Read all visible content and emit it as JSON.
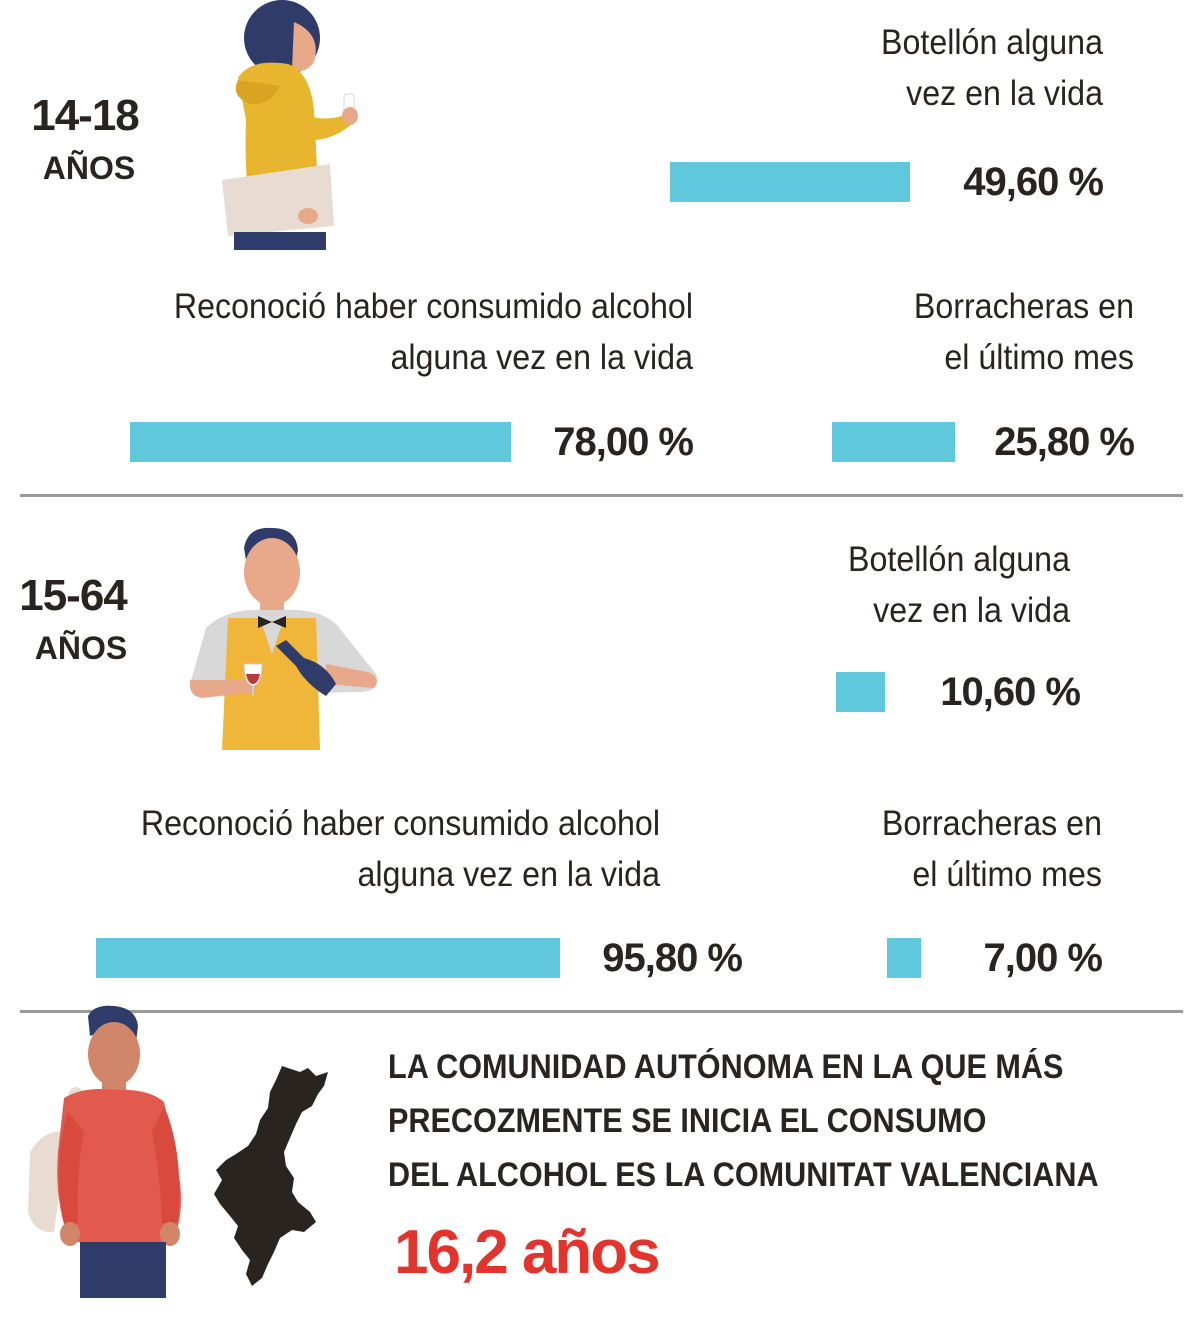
{
  "colors": {
    "bar": "#5fc8dc",
    "text": "#2a2420",
    "accent": "#e2342c",
    "divider": "#9a9a9a"
  },
  "chart_data": [
    {
      "type": "bar",
      "group_age": "14-18",
      "group_unit": "AÑOS",
      "categories": [
        "Botellón alguna vez en la vida",
        "Reconoció haber consumido alcohol alguna vez en la vida",
        "Borracheras en el último mes"
      ],
      "values": [
        49.6,
        78.0,
        25.8
      ],
      "unit": "%"
    },
    {
      "type": "bar",
      "group_age": "15-64",
      "group_unit": "AÑOS",
      "categories": [
        "Botellón alguna vez en la vida",
        "Reconoció haber consumido alcohol alguna vez en la vida",
        "Borracheras en el último mes"
      ],
      "values": [
        10.6,
        95.8,
        7.0
      ],
      "unit": "%"
    }
  ],
  "section1": {
    "age": "14-18",
    "unit": "AÑOS",
    "botellon": {
      "line1": "Botellón alguna",
      "line2": "vez en la vida",
      "value": "49,60 %",
      "pct": 49.6
    },
    "alcohol": {
      "line1": "Reconoció haber consumido alcohol",
      "line2": "alguna vez en la vida",
      "value": "78,00 %",
      "pct": 78.0
    },
    "borracheras": {
      "line1": "Borracheras en",
      "line2": "el último mes",
      "value": "25,80 %",
      "pct": 25.8
    }
  },
  "section2": {
    "age": "15-64",
    "unit": "AÑOS",
    "botellon": {
      "line1": "Botellón alguna",
      "line2": "vez en la vida",
      "value": "10,60 %",
      "pct": 10.6
    },
    "alcohol": {
      "line1": "Reconoció haber consumido alcohol",
      "line2": "alguna vez en la vida",
      "value": "95,80 %",
      "pct": 95.8
    },
    "borracheras": {
      "line1": "Borracheras en",
      "line2": "el último mes",
      "value": "7,00 %",
      "pct": 7.0
    }
  },
  "footer": {
    "line1": "LA COMUNIDAD AUTÓNOMA EN LA QUE MÁS",
    "line2": "PRECOZMENTE SE INICIA EL CONSUMO",
    "line3": "DEL ALCOHOL ES LA COMUNITAT VALENCIANA",
    "highlight": "16,2 años"
  },
  "icons": {
    "teen": "teen-girl-icon",
    "adult": "waiter-with-wine-icon",
    "young": "young-man-icon",
    "map": "comunitat-valenciana-map-icon"
  }
}
